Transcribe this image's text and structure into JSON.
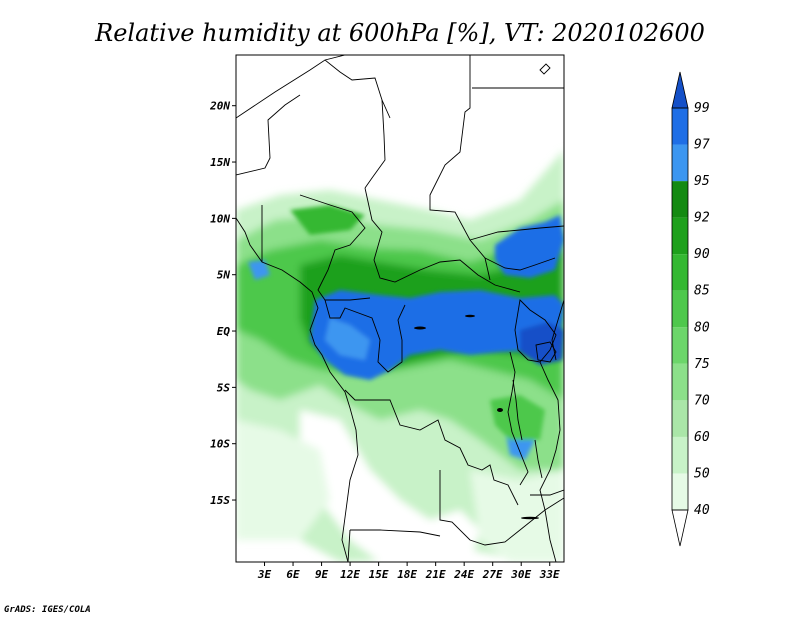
{
  "title": "Relative humidity at 600hPa [%], VT: 2020102600",
  "credit": "GrADS: IGES/COLA",
  "map": {
    "lon_range": [
      0,
      34.5
    ],
    "lat_range": [
      -20.5,
      24.5
    ],
    "lat_ticks": [
      {
        "value": 20,
        "label": "20N"
      },
      {
        "value": 15,
        "label": "15N"
      },
      {
        "value": 10,
        "label": "10N"
      },
      {
        "value": 5,
        "label": "5N"
      },
      {
        "value": 0,
        "label": "EQ"
      },
      {
        "value": -5,
        "label": "5S"
      },
      {
        "value": -10,
        "label": "10S"
      },
      {
        "value": -15,
        "label": "15S"
      }
    ],
    "lon_ticks": [
      {
        "value": 3,
        "label": "3E"
      },
      {
        "value": 6,
        "label": "6E"
      },
      {
        "value": 9,
        "label": "9E"
      },
      {
        "value": 12,
        "label": "12E"
      },
      {
        "value": 15,
        "label": "15E"
      },
      {
        "value": 18,
        "label": "18E"
      },
      {
        "value": 21,
        "label": "21E"
      },
      {
        "value": 24,
        "label": "24E"
      },
      {
        "value": 27,
        "label": "27E"
      },
      {
        "value": 30,
        "label": "30E"
      },
      {
        "value": 33,
        "label": "33E"
      }
    ]
  },
  "colorbar": {
    "levels": [
      "40",
      "50",
      "60",
      "70",
      "75",
      "80",
      "85",
      "90",
      "92",
      "95",
      "97",
      "99"
    ],
    "colors": [
      "#ffffff",
      "#e6fae6",
      "#c8f2c8",
      "#aae6a8",
      "#8ce08a",
      "#6cd66a",
      "#4ec84c",
      "#34b832",
      "#1ea01c",
      "#148a12",
      "#3c96f0",
      "#1e6ee6",
      "#1450c8"
    ]
  },
  "colors": {
    "low_humidity": "#ffffff",
    "moderate_humidity": "#8ce08a",
    "high_humidity": "#148a12",
    "saturated": "#1e6ee6"
  }
}
